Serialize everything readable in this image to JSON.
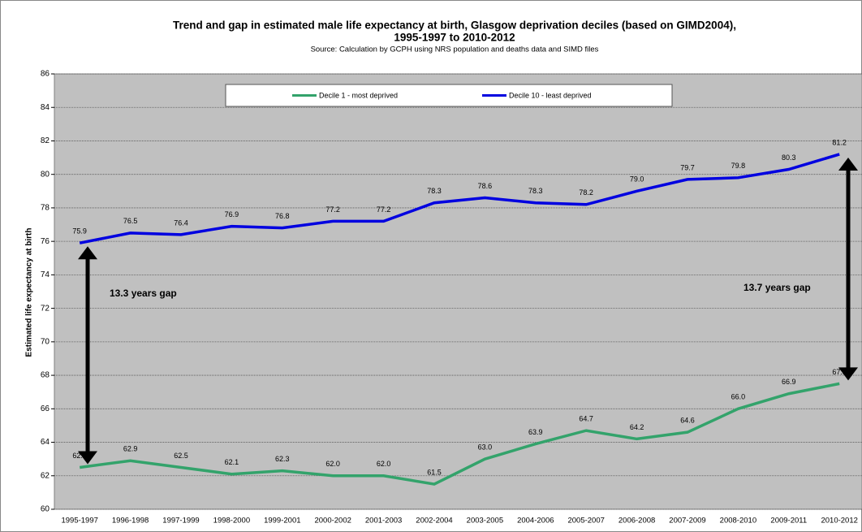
{
  "chart_data": {
    "type": "line",
    "title": "Trend and gap in estimated male life expectancy at birth, Glasgow deprivation deciles (based on GIMD2004),",
    "title_line2": "1995-1997 to 2010-2012",
    "subtitle": "Source: Calculation by GCPH using NRS population and deaths data and SIMD files",
    "y_label": "Estimated life expectancy at birth",
    "categories": [
      "1995-1997",
      "1996-1998",
      "1997-1999",
      "1998-2000",
      "1999-2001",
      "2000-2002",
      "2001-2003",
      "2002-2004",
      "2003-2005",
      "2004-2006",
      "2005-2007",
      "2006-2008",
      "2007-2009",
      "2008-2010",
      "2009-2011",
      "2010-2012"
    ],
    "series": [
      {
        "name": "Decile 1 - most deprived",
        "color": "#33a36b",
        "values": [
          62.5,
          62.9,
          62.5,
          62.1,
          62.3,
          62.0,
          62.0,
          61.5,
          63.0,
          63.9,
          64.7,
          64.2,
          64.6,
          66.0,
          66.9,
          67.5
        ],
        "value_labels": [
          "62.5",
          "62.9",
          "62.5",
          "62.1",
          "62.3",
          "62.0",
          "62.0",
          "61.5",
          "63.0",
          "63.9",
          "64.7",
          "64.2",
          "64.6",
          "66.0",
          "66.9",
          "67.5"
        ]
      },
      {
        "name": "Decile 10 - least deprived",
        "color": "#0000e0",
        "values": [
          75.9,
          76.5,
          76.4,
          76.9,
          76.8,
          77.2,
          77.2,
          78.3,
          78.6,
          78.3,
          78.2,
          79.0,
          79.7,
          79.8,
          80.3,
          81.2
        ],
        "value_labels": [
          "75.9",
          "76.5",
          "76.4",
          "76.9",
          "76.8",
          "77.2",
          "77.2",
          "78.3",
          "78.6",
          "78.3",
          "78.2",
          "79.0",
          "79.7",
          "79.8",
          "80.3",
          "81.2"
        ]
      }
    ],
    "annotations": [
      "13.3 years gap",
      "13.7 years gap"
    ],
    "ylim": [
      60,
      86
    ],
    "yticks": [
      60,
      62,
      64,
      66,
      68,
      70,
      72,
      74,
      76,
      78,
      80,
      82,
      84,
      86
    ],
    "grid": true
  }
}
